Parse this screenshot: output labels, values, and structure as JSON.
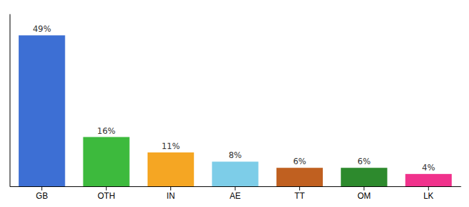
{
  "chart_data": {
    "type": "bar",
    "categories": [
      "GB",
      "OTH",
      "IN",
      "AE",
      "TT",
      "OM",
      "LK"
    ],
    "values": [
      49,
      16,
      11,
      8,
      6,
      6,
      4
    ],
    "value_labels": [
      "49%",
      "16%",
      "11%",
      "8%",
      "6%",
      "6%",
      "4%"
    ],
    "colors": [
      "#3d6fd4",
      "#3dba3d",
      "#f5a623",
      "#7dcde8",
      "#c06020",
      "#2d8a2d",
      "#f0328c"
    ],
    "ylim": [
      0,
      56
    ],
    "tick_labels": "x",
    "data_labels": true,
    "grid": false
  }
}
